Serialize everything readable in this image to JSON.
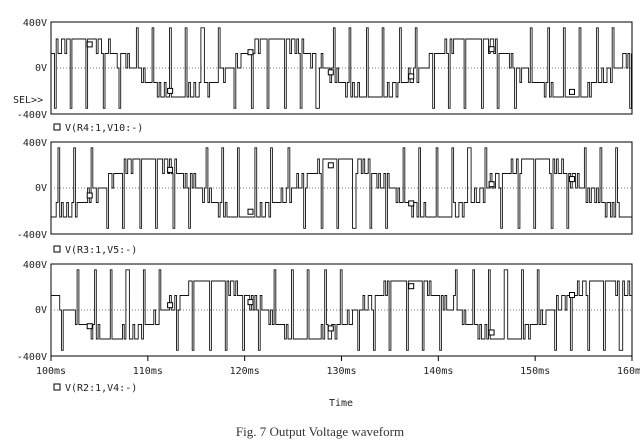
{
  "chart_data": {
    "type": "line",
    "xlabel": "Time",
    "x_ticks": [
      "100ms",
      "110ms",
      "120ms",
      "130ms",
      "140ms",
      "150ms",
      "160ms"
    ],
    "xlim": [
      100,
      160
    ],
    "x_unit": "ms",
    "sel_marker": "SEL>>",
    "panels": [
      {
        "y_ticks": [
          "400V",
          "0V",
          "-400V"
        ],
        "ylim": [
          -400,
          400
        ],
        "legend": "V(R4:1,V10:-)",
        "series": [
          {
            "name": "V(R4:1,V10:-)",
            "amplitude": 350,
            "period_ms": 20,
            "phase_deg": 30,
            "waveform": "multilevel PWM",
            "color": "#111111"
          }
        ]
      },
      {
        "y_ticks": [
          "400V",
          "0V",
          "-400V"
        ],
        "ylim": [
          -400,
          400
        ],
        "legend": "V(R3:1,V5:-)",
        "series": [
          {
            "name": "V(R3:1,V5:-)",
            "amplitude": 350,
            "period_ms": 20,
            "phase_deg": -90,
            "waveform": "multilevel PWM",
            "color": "#111111"
          }
        ]
      },
      {
        "y_ticks": [
          "400V",
          "0V",
          "-400V"
        ],
        "ylim": [
          -400,
          400
        ],
        "legend": "V(R2:1,V4:-)",
        "series": [
          {
            "name": "V(R2:1,V4:-)",
            "amplitude": 350,
            "period_ms": 20,
            "phase_deg": 150,
            "waveform": "multilevel PWM",
            "color": "#111111"
          }
        ]
      }
    ]
  },
  "caption": "Fig. 7   Output Voltage waveform"
}
